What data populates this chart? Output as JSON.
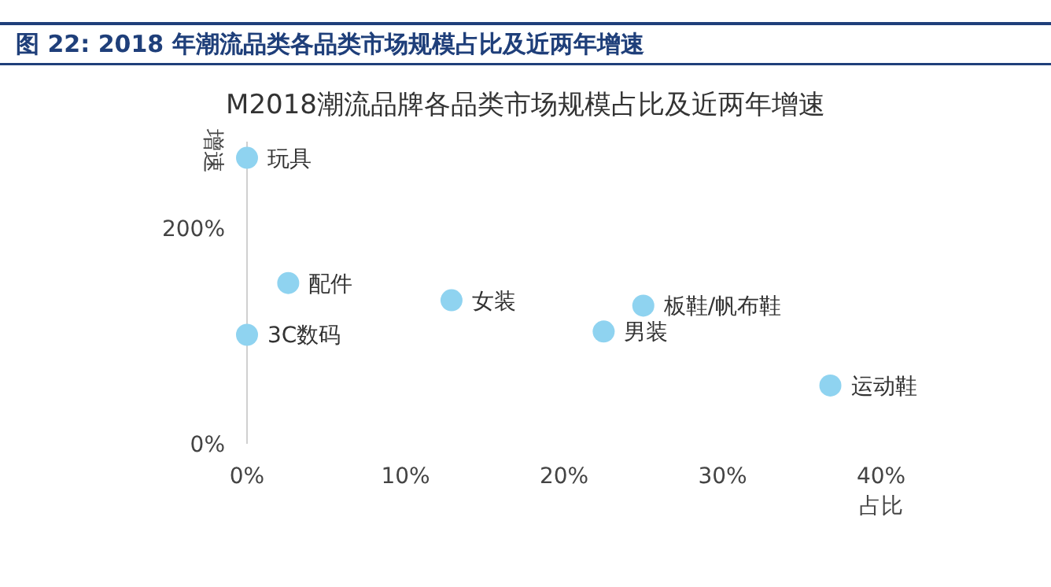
{
  "chart_data": {
    "type": "scatter",
    "title": "图 22: 2018 年潮流品类各品类市场规模占比及近两年增速",
    "subtitle": "M2018潮流品牌各品类市场规模占比及近两年增速",
    "xlabel": "占比",
    "ylabel": "增速",
    "x": [
      0,
      2.6,
      0,
      12.9,
      22.5,
      25.0,
      36.8
    ],
    "series": [
      {
        "color": "#8fd3f0",
        "values": [
          265,
          149,
          101,
          133,
          104,
          128,
          54
        ]
      }
    ],
    "marker": "circle",
    "xlim": [
      0,
      40
    ],
    "xticks": [
      {
        "value": 0,
        "label": "0%"
      },
      {
        "value": 10,
        "label": "10%"
      },
      {
        "value": 20,
        "label": "20%"
      },
      {
        "value": 30,
        "label": "30%"
      },
      {
        "value": 40,
        "label": "40%"
      }
    ],
    "ylim": [
      0,
      280
    ],
    "yticks": [
      {
        "value": 0,
        "label": "0%"
      },
      {
        "value": 200,
        "label": "200%"
      }
    ],
    "annotations": [
      {
        "text": "玩具",
        "x": 0,
        "y": 265
      },
      {
        "text": "配件",
        "x": 2.6,
        "y": 149
      },
      {
        "text": "3C数码",
        "x": 0,
        "y": 101
      },
      {
        "text": "女装",
        "x": 12.9,
        "y": 133
      },
      {
        "text": "男装",
        "x": 22.5,
        "y": 104
      },
      {
        "text": "板鞋/帆布鞋",
        "x": 25.0,
        "y": 128
      },
      {
        "text": "运动鞋",
        "x": 36.8,
        "y": 54
      }
    ]
  }
}
